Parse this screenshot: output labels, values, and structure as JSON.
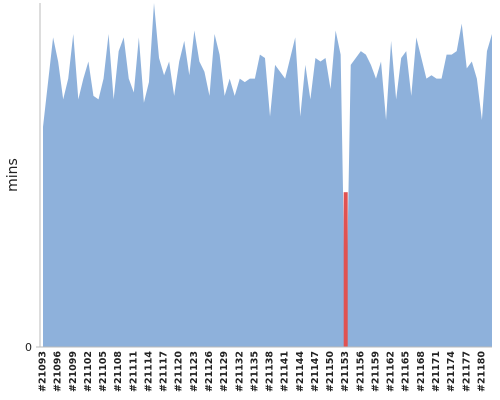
{
  "chart_data": {
    "type": "area",
    "y_label": "mins",
    "categories": [
      "#21093",
      null,
      null,
      "#21096",
      null,
      null,
      "#21099",
      null,
      null,
      "#21102",
      null,
      null,
      "#21105",
      null,
      null,
      "#21108",
      null,
      null,
      "#21111",
      null,
      null,
      "#21114",
      null,
      null,
      "#21117",
      null,
      null,
      "#21120",
      null,
      null,
      "#21123",
      null,
      null,
      "#21126",
      null,
      null,
      "#21129",
      null,
      null,
      "#21132",
      null,
      null,
      "#21135",
      null,
      null,
      "#21138",
      null,
      null,
      "#21141",
      null,
      null,
      "#21144",
      null,
      null,
      "#21147",
      null,
      null,
      "#21150",
      null,
      null,
      "#21153",
      null,
      null,
      "#21156",
      null,
      null,
      "#21159",
      null,
      null,
      "#21162",
      null,
      null,
      "#21165",
      null,
      null,
      "#21168",
      null,
      null,
      "#21171",
      null,
      null,
      "#21174",
      null,
      null,
      "#21177",
      null,
      null,
      "#21180",
      null,
      null
    ],
    "values": [
      64,
      77,
      90,
      83,
      72,
      78,
      91,
      72,
      78,
      83,
      73,
      72,
      78,
      91,
      72,
      86,
      90,
      78,
      74,
      90,
      71,
      77,
      100,
      84,
      79,
      83,
      73,
      83,
      89,
      79,
      92,
      83,
      80,
      73,
      91,
      85,
      73,
      78,
      73,
      78,
      77,
      78,
      78,
      85,
      84,
      67,
      82,
      80,
      78,
      84,
      90,
      67,
      82,
      72,
      84,
      83,
      84,
      75,
      92,
      85,
      0,
      82,
      84,
      86,
      85,
      82,
      78,
      83,
      66,
      89,
      72,
      84,
      86,
      73,
      90,
      84,
      78,
      79,
      78,
      78,
      85,
      85,
      86,
      94,
      81,
      83,
      78,
      66,
      86,
      91
    ],
    "color": "#8eb1db",
    "failed_values": [
      null,
      null,
      null,
      null,
      null,
      null,
      null,
      null,
      null,
      null,
      null,
      null,
      null,
      null,
      null,
      null,
      null,
      null,
      null,
      null,
      null,
      null,
      null,
      null,
      null,
      null,
      null,
      null,
      null,
      null,
      null,
      null,
      null,
      null,
      null,
      null,
      null,
      null,
      null,
      null,
      null,
      null,
      null,
      null,
      null,
      null,
      null,
      null,
      null,
      null,
      null,
      null,
      null,
      null,
      null,
      null,
      null,
      null,
      null,
      null,
      45,
      null,
      null,
      null,
      null,
      null,
      null,
      null,
      null,
      null,
      null,
      null,
      null,
      null,
      null,
      null,
      null,
      null,
      null,
      null,
      null,
      null,
      null,
      null,
      null,
      null,
      null,
      null,
      null,
      null
    ],
    "failed_color": "#e05252",
    "ylim": [
      0,
      100
    ],
    "yticks": [
      0
    ]
  }
}
